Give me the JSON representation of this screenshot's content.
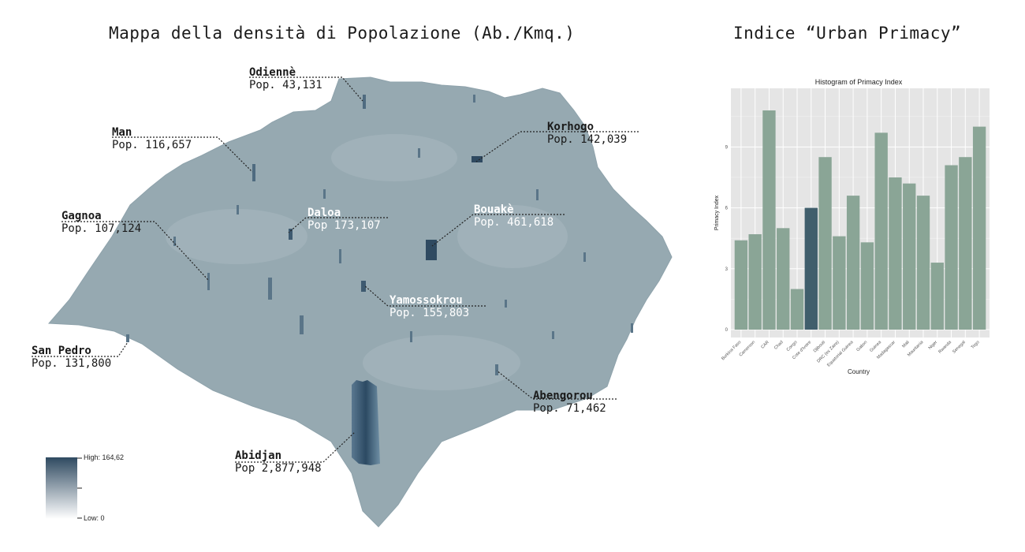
{
  "map": {
    "title": "Mappa della densità di Popolazione (Ab./Kmq.)",
    "legend": {
      "high": "High: 164,62",
      "low": "Low: 0",
      "color_high": "#2f4a61",
      "color_low": "#ffffff"
    },
    "cities": [
      {
        "id": "odienne",
        "name": "Odiennè",
        "pop": "Pop. 43,131"
      },
      {
        "id": "man",
        "name": "Man",
        "pop": "Pop. 116,657"
      },
      {
        "id": "korhogo",
        "name": "Korhogo",
        "pop": "Pop. 142,039"
      },
      {
        "id": "gagnoa",
        "name": "Gagnoa",
        "pop": "Pop. 107,124"
      },
      {
        "id": "daloa",
        "name": "Daloa",
        "pop": "Pop 173,107"
      },
      {
        "id": "bouake",
        "name": "Bouakè",
        "pop": "Pop. 461,618"
      },
      {
        "id": "yamoussokrou",
        "name": "Yamossokrou",
        "pop": "Pop. 155,803"
      },
      {
        "id": "sanpedro",
        "name": "San Pedro",
        "pop": "Pop. 131,800"
      },
      {
        "id": "abengorou",
        "name": "Abengorou",
        "pop": "Pop. 71,462"
      },
      {
        "id": "abidjan",
        "name": "Abidjan",
        "pop": "Pop 2,877,948"
      }
    ]
  },
  "chart": {
    "heading": "Indice “Urban Primacy”",
    "chart_data": {
      "type": "bar",
      "title": "Histogram of Primacy Index",
      "xlabel": "Country",
      "ylabel": "Primacy Index",
      "categories": [
        "Burkina Faso",
        "Cameroon",
        "CAR",
        "Chad",
        "Congo",
        "Cote d'Ivoire",
        "Djibouti",
        "DRC (ex Zaire)",
        "Equatorial Guinea",
        "Gabon",
        "Guinea",
        "Madagascar",
        "Mali",
        "Mauritania",
        "Niger",
        "Rwanda",
        "Senegal",
        "Togo"
      ],
      "values": [
        4.4,
        4.7,
        10.8,
        5.0,
        2.0,
        6.0,
        8.5,
        4.6,
        6.6,
        4.3,
        9.7,
        7.5,
        7.2,
        6.6,
        3.3,
        8.1,
        8.5,
        10.0
      ],
      "highlight_index": 5,
      "yticks": [
        0,
        3,
        6,
        9
      ],
      "ylim": [
        0,
        11.5
      ],
      "bar_color": "#8aa596",
      "highlight_color": "#405e6c",
      "panel_color": "#e5e5e5",
      "grid": true
    }
  }
}
